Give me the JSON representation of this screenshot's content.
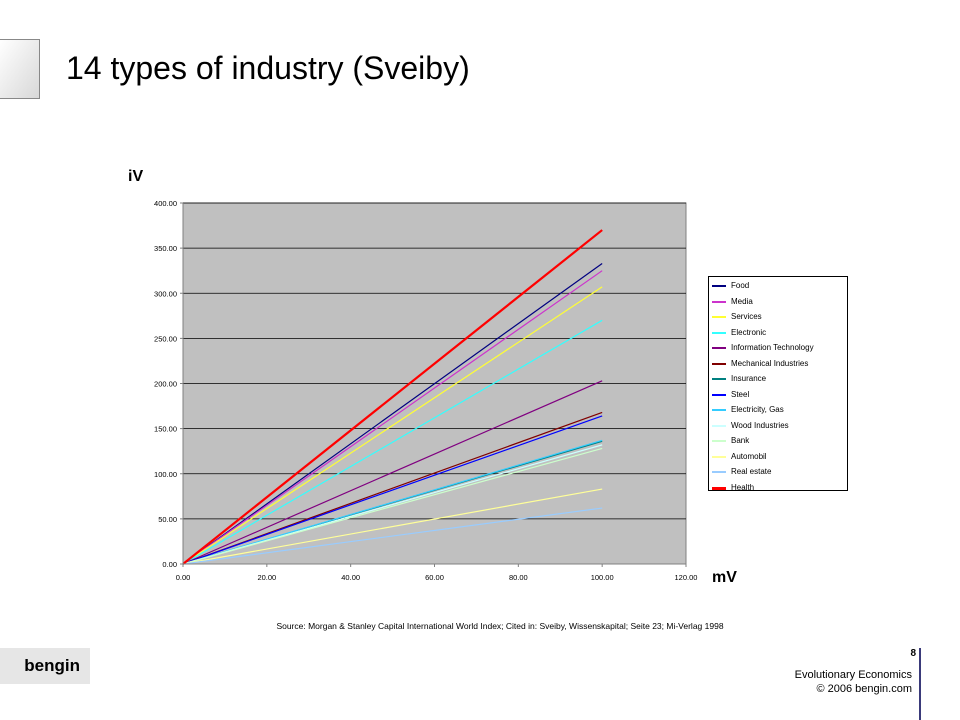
{
  "slide": {
    "title": "14 types of industry (Sveiby)",
    "source": "Source: Morgan & Stanley Capital International World Index; Cited in: Sveiby, Wissenskapital; Seite 23; Mi-Verlag 1998",
    "logo": "bengin",
    "page_number": "8",
    "footer_course": "Evolutionary Economics",
    "footer_copyright": "© 2006 bengin.com"
  },
  "chart_data": {
    "type": "line",
    "title": "",
    "xlabel": "mV",
    "ylabel": "iV",
    "xlim": [
      0,
      120
    ],
    "ylim": [
      0,
      400
    ],
    "x_ticks": [
      "0.00",
      "20.00",
      "40.00",
      "60.00",
      "80.00",
      "100.00",
      "120.00"
    ],
    "y_ticks": [
      "0.00",
      "50.00",
      "100.00",
      "150.00",
      "200.00",
      "250.00",
      "300.00",
      "350.00",
      "400.00"
    ],
    "grid": "horizontal",
    "plot_background": "#c0c0c0",
    "legend_position": "right",
    "series": [
      {
        "name": "Food",
        "color": "#000080",
        "x": [
          0,
          100
        ],
        "y": [
          0,
          333
        ]
      },
      {
        "name": "Media",
        "color": "#cc33cc",
        "x": [
          0,
          100
        ],
        "y": [
          0,
          325
        ]
      },
      {
        "name": "Services",
        "color": "#ffff33",
        "x": [
          0,
          100
        ],
        "y": [
          0,
          307
        ]
      },
      {
        "name": "Electronic",
        "color": "#33ffff",
        "x": [
          0,
          100
        ],
        "y": [
          0,
          270
        ]
      },
      {
        "name": "Information Technology",
        "color": "#800080",
        "x": [
          0,
          100
        ],
        "y": [
          0,
          203
        ]
      },
      {
        "name": "Mechanical Industries",
        "color": "#800000",
        "x": [
          0,
          100
        ],
        "y": [
          0,
          168
        ]
      },
      {
        "name": "Insurance",
        "color": "#008080",
        "x": [
          0,
          100
        ],
        "y": [
          0,
          136
        ]
      },
      {
        "name": "Steel",
        "color": "#0000ff",
        "x": [
          0,
          100
        ],
        "y": [
          0,
          164
        ]
      },
      {
        "name": "Electricity, Gas",
        "color": "#33ccff",
        "x": [
          0,
          100
        ],
        "y": [
          0,
          137
        ]
      },
      {
        "name": "Wood Industries",
        "color": "#ccffff",
        "x": [
          0,
          100
        ],
        "y": [
          0,
          132
        ]
      },
      {
        "name": "Bank",
        "color": "#ccffcc",
        "x": [
          0,
          100
        ],
        "y": [
          0,
          128
        ]
      },
      {
        "name": "Automobil",
        "color": "#ffff99",
        "x": [
          0,
          100
        ],
        "y": [
          0,
          83
        ]
      },
      {
        "name": "Real estate",
        "color": "#99ccff",
        "x": [
          0,
          100
        ],
        "y": [
          0,
          62
        ]
      },
      {
        "name": "Health",
        "color": "#ff0000",
        "x": [
          0,
          100
        ],
        "y": [
          0,
          370
        ]
      }
    ]
  }
}
